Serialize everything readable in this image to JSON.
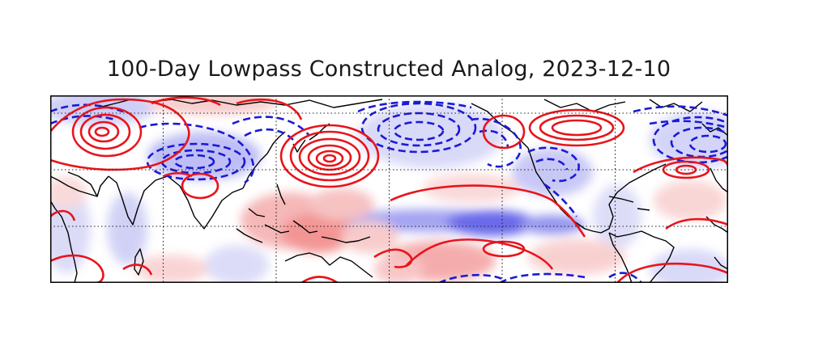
{
  "title": "100-Day Lowpass Constructed Analog, 2023-12-10",
  "map": {
    "projection": "cylindrical",
    "longitude_range": [
      30,
      390
    ],
    "latitude_range": [
      -30,
      70
    ],
    "gridlines": "dotted, every 30 degrees longitude and 30 degrees latitude",
    "filled_field": "diverging blue-white-red shading (blue negative, red positive)",
    "positive_contour_style": "solid red",
    "negative_contour_style": "dashed blue",
    "colors": {
      "positive": "#e8141b",
      "negative": "#1a1ad6",
      "fill_positive": "#f26a6a",
      "fill_negative": "#5a5ae8",
      "coastline": "#000000"
    }
  }
}
